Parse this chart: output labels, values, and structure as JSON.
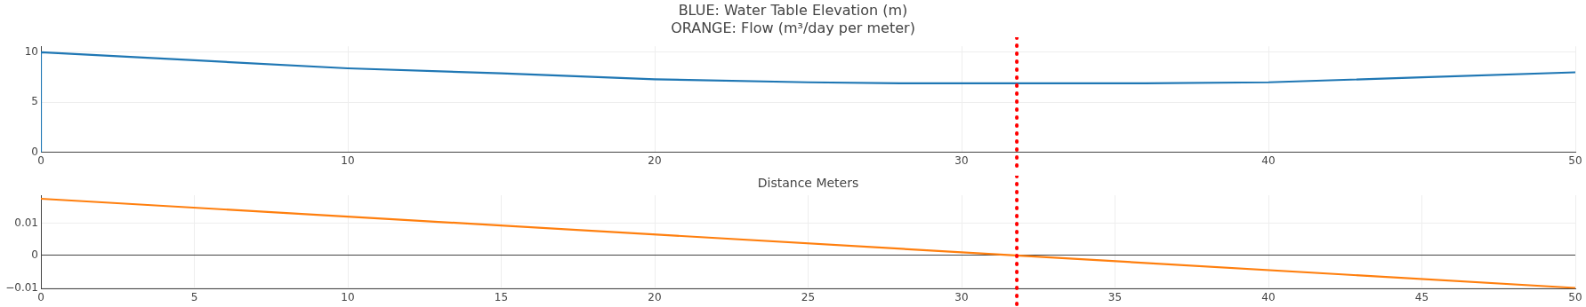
{
  "chart_data": [
    {
      "type": "line",
      "title": "BLUE: Water Table Elevation (m)",
      "subtitle": "ORANGE: Flow (m³/day per meter)",
      "x": [
        0,
        0,
        5,
        10,
        15,
        20,
        25,
        28,
        32,
        36,
        40,
        45,
        50
      ],
      "series": [
        {
          "color": "#1f77b4",
          "values": [
            0,
            10,
            9.2,
            8.4,
            7.9,
            7.3,
            7.0,
            6.9,
            6.9,
            6.9,
            7.0,
            7.5,
            8.0
          ]
        }
      ],
      "xlim": [
        0,
        50
      ],
      "xticks": [
        0,
        10,
        20,
        30,
        40,
        50
      ],
      "ylim": [
        0,
        10.6
      ],
      "yticks": [
        0,
        5,
        10
      ],
      "grid": true,
      "legend": false,
      "marker": "none",
      "line_style": "solid",
      "ref_lines": [
        {
          "axis": "x",
          "value": 31.8,
          "color": "#ff0000",
          "line_style": "dotted"
        }
      ]
    },
    {
      "type": "line",
      "xlabel": "Distance Meters",
      "x": [
        0,
        50
      ],
      "series": [
        {
          "color": "#ff7f0e",
          "values": [
            0.0175,
            -0.01
          ]
        }
      ],
      "xlim": [
        0,
        50
      ],
      "xticks": [
        0,
        5,
        10,
        15,
        20,
        25,
        30,
        35,
        40,
        45,
        50
      ],
      "ylim": [
        -0.0103,
        0.0186
      ],
      "yticks": [
        -0.01,
        0,
        0.01
      ],
      "grid": true,
      "legend": false,
      "marker": "none",
      "line_style": "solid",
      "ref_lines": [
        {
          "axis": "x",
          "value": 31.8,
          "color": "#ff0000",
          "line_style": "dotted"
        }
      ]
    }
  ]
}
